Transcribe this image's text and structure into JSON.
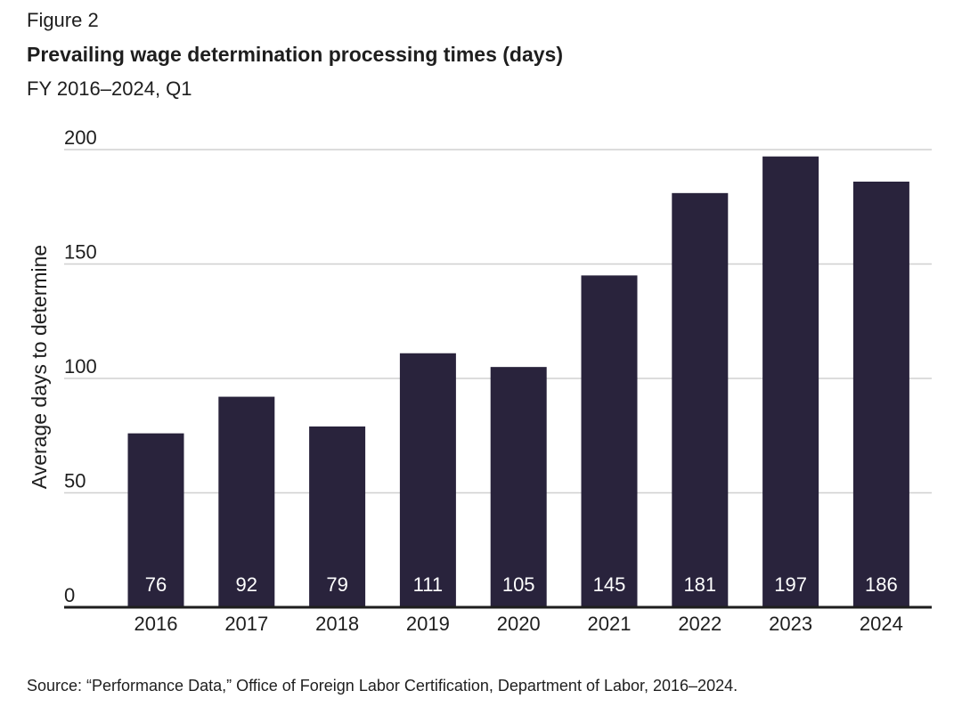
{
  "figure_label": "Figure 2",
  "title": "Prevailing wage determination processing times (days)",
  "subtitle": "FY 2016–2024, Q1",
  "source": "Source: “Performance Data,” Office of Foreign Labor Certification, Department of Labor, 2016–2024.",
  "colors": {
    "bar": "#29233c",
    "grid": "#d0d0d0",
    "axis": "#1e1e1e",
    "bar_label": "#ffffff"
  },
  "chart_data": {
    "type": "bar",
    "title": "Prevailing wage determination processing times (days)",
    "subtitle": "FY 2016–2024, Q1",
    "xlabel": "",
    "ylabel": "Average days to determine",
    "categories": [
      "2016",
      "2017",
      "2018",
      "2019",
      "2020",
      "2021",
      "2022",
      "2023",
      "2024"
    ],
    "values": [
      76,
      92,
      79,
      111,
      105,
      145,
      181,
      197,
      186
    ],
    "data_labels": [
      "76",
      "92",
      "79",
      "111",
      "105",
      "145",
      "181",
      "197",
      "186"
    ],
    "ylim": [
      0,
      200
    ],
    "yticks": [
      0,
      50,
      100,
      150,
      200
    ],
    "grid": true,
    "legend": "none"
  }
}
